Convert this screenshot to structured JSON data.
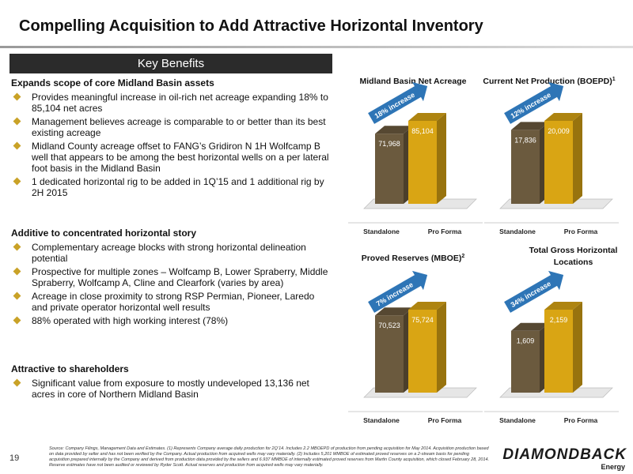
{
  "header": {
    "title": "Compelling Acquisition to Add Attractive Horizontal Inventory"
  },
  "key_benefits": {
    "title": "Key Benefits",
    "sections": [
      {
        "heading": "Expands scope of core Midland Basin assets",
        "bullets": [
          "Provides meaningful increase in oil-rich net acreage expanding 18% to 85,104 net acres",
          "Management believes acreage is comparable to or better than its best existing acreage",
          "Midland County acreage offset to FANG’s Gridiron N 1H Wolfcamp B well that appears to be among the best horizontal wells on a per lateral foot basis in the Midland Basin",
          "1 dedicated horizontal rig to be added in 1Q’15 and 1 additional rig by 2H 2015"
        ]
      },
      {
        "heading": "Additive to concentrated horizontal story",
        "bullets": [
          "Complementary acreage blocks with strong horizontal delineation potential",
          "Prospective for multiple zones – Wolfcamp B, Lower Spraberry, Middle Spraberry, Wolfcamp A, Cline and Clearfork (varies by area)",
          "Acreage in close proximity to strong RSP Permian, Pioneer, Laredo and private operator horizontal well results",
          "88% operated with high working interest (78%)"
        ]
      },
      {
        "heading": "Attractive to shareholders",
        "bullets": [
          "Significant value from exposure to mostly undeveloped 13,136 net acres in core of Northern Midland Basin"
        ]
      }
    ]
  },
  "chart_data": [
    {
      "type": "bar",
      "title": "Midland Basin Net Acreage",
      "categories": [
        "Standalone",
        "Pro Forma"
      ],
      "values": [
        71968,
        85104
      ],
      "value_labels": [
        "71,968",
        "85,104"
      ],
      "colors": [
        "#6b5a3e",
        "#d9a514"
      ],
      "annotation": "18% increase"
    },
    {
      "type": "bar",
      "title": "Current Net Production (BOEPD)",
      "title_note": "1",
      "categories": [
        "Standalone",
        "Pro Forma"
      ],
      "values": [
        17836,
        20009
      ],
      "value_labels": [
        "17,836",
        "20,009"
      ],
      "colors": [
        "#6b5a3e",
        "#d9a514"
      ],
      "annotation": "12% increase"
    },
    {
      "type": "bar",
      "title": "Proved Reserves (MBOE)",
      "title_note": "2",
      "categories": [
        "Standalone",
        "Pro Forma"
      ],
      "values": [
        70523,
        75724
      ],
      "value_labels": [
        "70,523",
        "75,724"
      ],
      "colors": [
        "#6b5a3e",
        "#d9a514"
      ],
      "annotation": "7% increase"
    },
    {
      "type": "bar",
      "title": "Total Gross Horizontal Locations",
      "categories": [
        "Standalone",
        "Pro Forma"
      ],
      "values": [
        1609,
        2159
      ],
      "value_labels": [
        "1,609",
        "2,159"
      ],
      "colors": [
        "#6b5a3e",
        "#d9a514"
      ],
      "annotation": "34% increase"
    }
  ],
  "footer": {
    "page_number": "19",
    "source": "Source: Company Filings, Management Data and Estimates. (1) Represents Company average daily production for 2Q’14. Includes 2.2 MBOEPD of production from pending acquisition for May 2014. Acquisition production based on data provided by seller and has not been verified by the Company. Actual production from acquired wells may vary materially. (2) Includes 5,201 MMBOE of estimated proved reserves on a 2-stream basis for pending acquisition prepared internally by the Company and derived from production data provided by the sellers and 6.937 MMBOE of internally estimated proved reserves from Martin County acquisition, which closed February 28, 2014. Reserve estimates have not been audited or reviewed by Ryder Scott. Actual reserves and production from acquired wells may vary materially.",
    "logo": "DIAMONDBACK",
    "logo_sub": "Energy"
  }
}
